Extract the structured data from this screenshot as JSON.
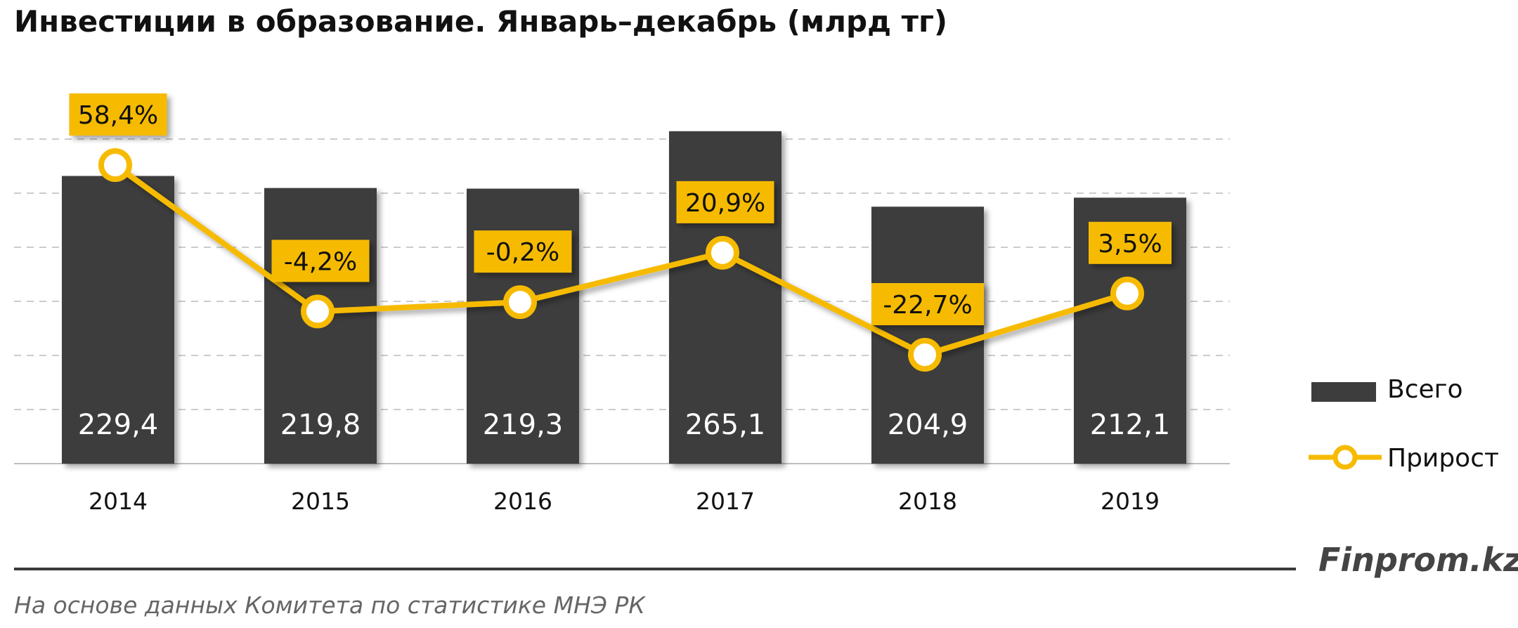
{
  "title": "Инвестиции в образование. Январь–декабрь (млрд тг)",
  "brand": "Finprom.kz",
  "source": "На основе данных  Комитета по статистике МНЭ РК",
  "colors": {
    "bar": "#3d3d3d",
    "line": "#f6bb00",
    "grid": "#cccccc",
    "bar_label": "#ffffff"
  },
  "chart_data": {
    "type": "bar",
    "categories": [
      "2014",
      "2015",
      "2016",
      "2017",
      "2018",
      "2019"
    ],
    "series": [
      {
        "name": "Всего",
        "type": "bar",
        "values": [
          229.4,
          219.8,
          219.3,
          265.1,
          204.9,
          212.1
        ],
        "labels": [
          "229,4",
          "219,8",
          "219,3",
          "265,1",
          "204,9",
          "212,1"
        ]
      },
      {
        "name": "Прирост",
        "type": "line",
        "values": [
          58.4,
          -4.2,
          -0.2,
          20.9,
          -22.7,
          3.5
        ],
        "labels": [
          "58,4%",
          "-4,2%",
          "-0,2%",
          "20,9%",
          "-22,7%",
          "3,5%"
        ]
      }
    ],
    "legend": "right",
    "grid": true
  }
}
